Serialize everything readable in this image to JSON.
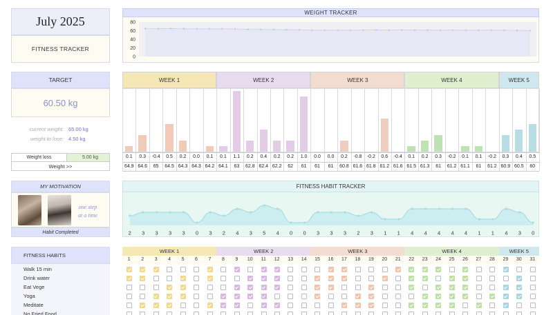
{
  "header": {
    "month": "July 2025",
    "subtitle": "FITNESS TRACKER"
  },
  "target": {
    "label": "TARGET",
    "value": "60.50 kg"
  },
  "current": {
    "current_label": "current weight:",
    "current_value": "65.00 kg",
    "lose_label": "weight to lose:",
    "lose_value": "4.50 kg"
  },
  "summary": {
    "loss_label": "Weight loss",
    "loss_value": "5.00 kg",
    "weight_label": "Weight >>"
  },
  "motivation": {
    "title": "MY MOTIVATION",
    "quote_line1": "one step",
    "quote_line2": "at a time",
    "footer": "Habit Completed"
  },
  "weight_tracker": {
    "title": "WEIGHT TRACKER",
    "y_ticks": [
      "80",
      "60",
      "40",
      "20",
      "0"
    ]
  },
  "weeks": [
    "WEEK 1",
    "WEEK 2",
    "WEEK 3",
    "WEEK 4",
    "WEEK 5"
  ],
  "week_colors": {
    "head": [
      "#f6e7b7",
      "#e9dcef",
      "#f3ddd0",
      "#dfefd0",
      "#cfe7ee"
    ],
    "bar": [
      "#f2cbb8",
      "#e2cce6",
      "#efcdc0",
      "#bfe2b5",
      "#b9dde5"
    ],
    "check": [
      "#f1d88a",
      "#d7b6e2",
      "#f0c4ac",
      "#bde0a6",
      "#a9d5e2"
    ]
  },
  "weight_change": {
    "changes": [
      "0.1",
      "0.3",
      "-0.4",
      "0.5",
      "0.2",
      "0.0",
      "0.1",
      "0.1",
      "1.1",
      "0.2",
      "0.4",
      "0.2",
      "0.2",
      "1.0",
      "0.0",
      "0.0",
      "0.2",
      "-0.8",
      "-0.2",
      "0.6",
      "-0.4",
      "0.1",
      "0.2",
      "0.3",
      "-0.2",
      "0.1",
      "0.1",
      "-0.2",
      "0.3",
      "0.4",
      "0.5"
    ],
    "weights": [
      "64.9",
      "64.6",
      "65",
      "64.5",
      "64.3",
      "64.3",
      "64.2",
      "64.1",
      "63",
      "62.8",
      "62.4",
      "62.2",
      "62",
      "61",
      "61",
      "61",
      "60.8",
      "61.6",
      "61.8",
      "61.2",
      "61.6",
      "61.5",
      "61.3",
      "61",
      "61.2",
      "61.1",
      "61",
      "61.2",
      "60.9",
      "60.5",
      "60"
    ]
  },
  "habit_tracker": {
    "title": "FITNESS HABIT TRACKER",
    "counts": [
      "2",
      "3",
      "3",
      "3",
      "3",
      "0",
      "3",
      "2",
      "4",
      "3",
      "5",
      "4",
      "0",
      "0",
      "3",
      "3",
      "3",
      "2",
      "3",
      "1",
      "1",
      "4",
      "4",
      "4",
      "4",
      "4",
      "1",
      "1",
      "4",
      "3",
      "0"
    ]
  },
  "habits": {
    "title": "FITNESS HABITS",
    "items": [
      "Walk 15 min",
      "Drink water",
      "Eat Vege",
      "Yoga",
      "Meditate",
      "No Fried Food"
    ]
  },
  "days": [
    "1",
    "2",
    "3",
    "4",
    "5",
    "6",
    "7",
    "8",
    "9",
    "10",
    "11",
    "12",
    "13",
    "14",
    "15",
    "16",
    "17",
    "18",
    "19",
    "20",
    "21",
    "22",
    "23",
    "24",
    "25",
    "26",
    "27",
    "28",
    "29",
    "30",
    "31"
  ]
}
